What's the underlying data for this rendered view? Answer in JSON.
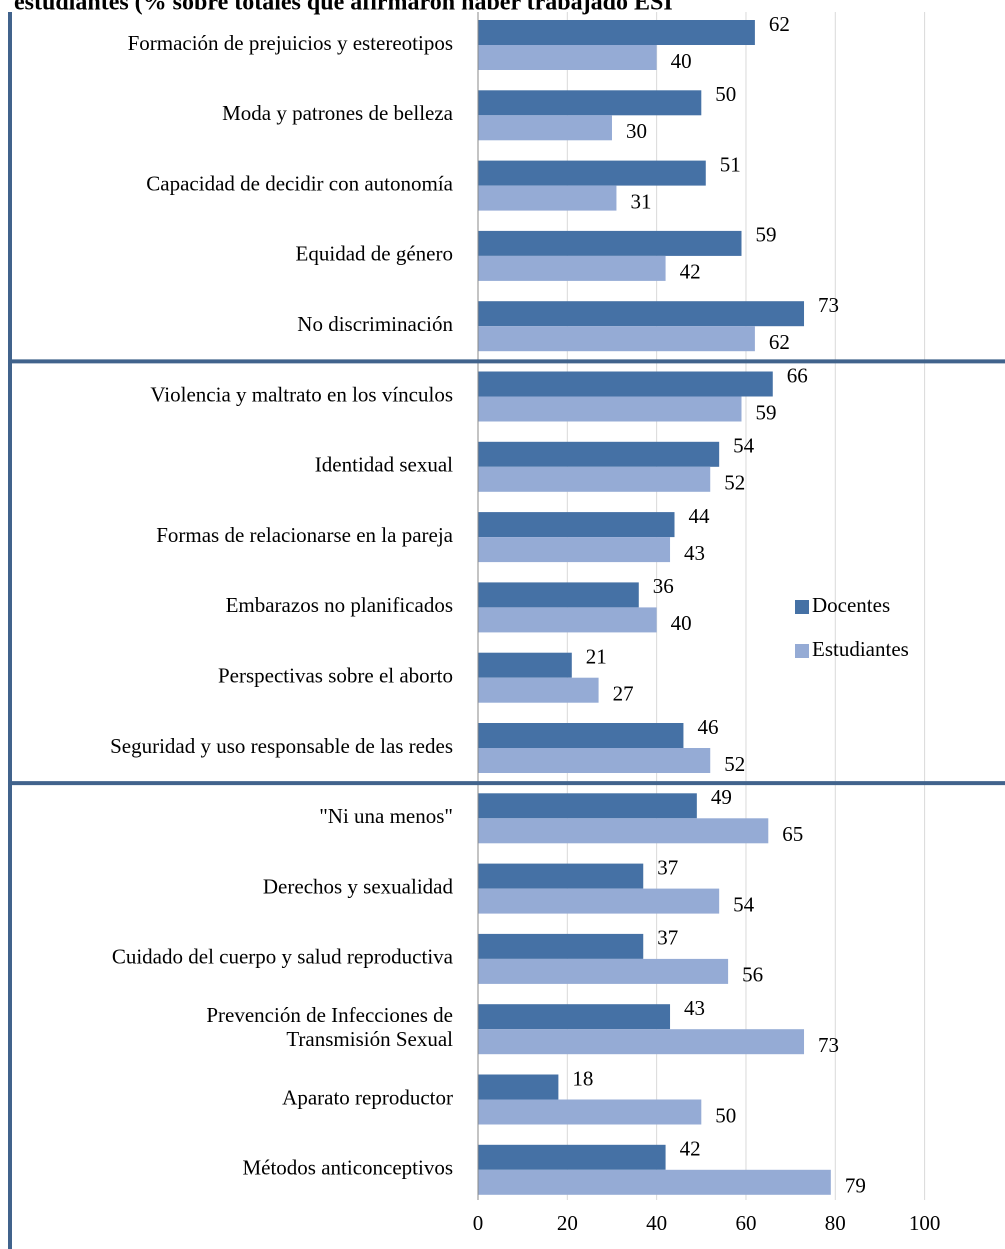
{
  "chart_data": {
    "type": "bar",
    "orientation": "horizontal",
    "title": "estudiantes (% sobre totales que afirmaron haber trabajado ESI",
    "categories": [
      "Formación de prejuicios y estereotipos",
      "Moda y patrones de belleza",
      "Capacidad de decidir con autonomía",
      "Equidad de género",
      "No discriminación",
      "Violencia y maltrato en los vínculos",
      "Identidad sexual",
      "Formas de relacionarse en la pareja",
      "Embarazos no planificados",
      "Perspectivas sobre el aborto",
      "Seguridad y uso responsable de las redes",
      "\"Ni una menos\"",
      "Derechos y sexualidad",
      "Cuidado del cuerpo y salud reproductiva",
      "Prevención de Infecciones de\nTransmisión Sexual",
      "Aparato reproductor",
      "Métodos anticonceptivos"
    ],
    "series": [
      {
        "name": "Docentes",
        "color": "#4571a5",
        "values": [
          62,
          50,
          51,
          59,
          73,
          66,
          54,
          44,
          36,
          21,
          46,
          49,
          37,
          37,
          43,
          18,
          42
        ]
      },
      {
        "name": "Estudiantes",
        "color": "#95abd5",
        "values": [
          40,
          30,
          31,
          42,
          62,
          59,
          52,
          43,
          40,
          27,
          52,
          65,
          54,
          56,
          73,
          50,
          79
        ]
      }
    ],
    "xlim": [
      0,
      118
    ],
    "xticks": [
      0,
      20,
      40,
      60,
      80,
      100
    ],
    "grid": true,
    "legend": "right"
  }
}
